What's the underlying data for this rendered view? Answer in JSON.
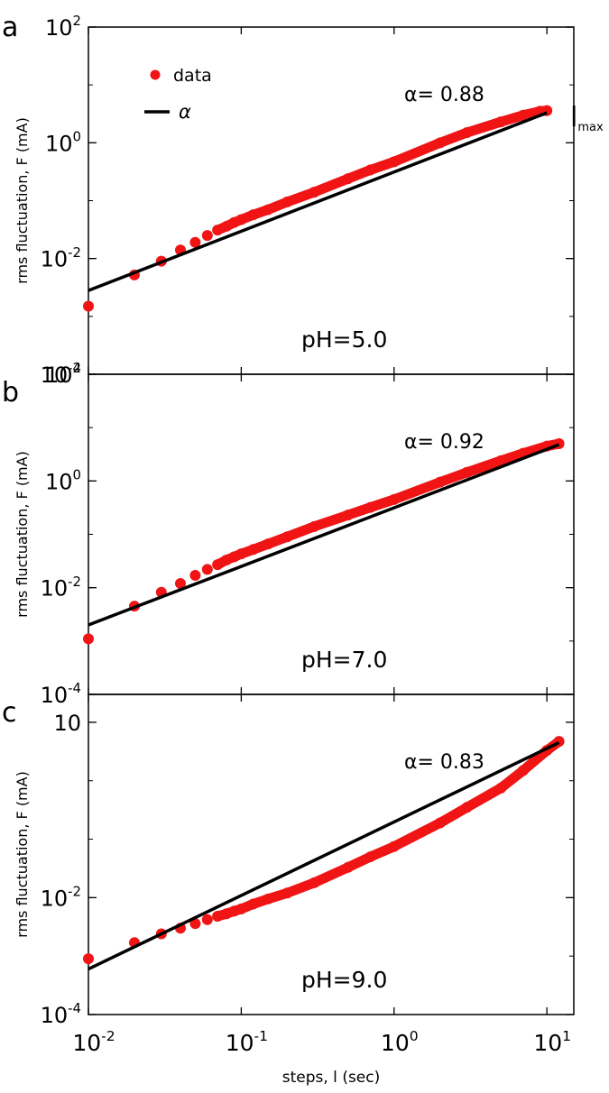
{
  "chart_data": [
    {
      "panel_label": "a",
      "type": "scatter",
      "xscale": "log",
      "yscale": "log",
      "xlim": [
        0.01,
        15
      ],
      "ylim": [
        0.0001,
        100
      ],
      "yticks": [
        0.0001,
        0.01,
        1,
        100
      ],
      "ytick_labels": [
        {
          "base": "10",
          "exp": "-4"
        },
        {
          "base": "10",
          "exp": "-2"
        },
        {
          "base": "10",
          "exp": "0"
        },
        {
          "base": "10",
          "exp": "2"
        }
      ],
      "ylabel": "rms fluctuation,  F (mA)",
      "annotation": "pH=5.0",
      "alpha_label": "α= 0.88",
      "alpha": 0.88,
      "lmax_label": {
        "main": "l",
        "sub": "max"
      },
      "lmax_x": 10,
      "legend": {
        "placement": "top-left",
        "entries": [
          {
            "marker": "dot",
            "label": "data"
          },
          {
            "marker": "line",
            "label": "α"
          }
        ]
      },
      "series": [
        {
          "kind": "points",
          "x": [
            0.01,
            0.02,
            0.03,
            0.04,
            0.05,
            0.06,
            0.07,
            0.08,
            0.09,
            0.1,
            0.12,
            0.15,
            0.2,
            0.3,
            0.5,
            0.7,
            1,
            2,
            3,
            5,
            7,
            9,
            10
          ],
          "y": [
            0.0015,
            0.0052,
            0.009,
            0.014,
            0.019,
            0.025,
            0.031,
            0.036,
            0.042,
            0.047,
            0.057,
            0.07,
            0.095,
            0.14,
            0.24,
            0.34,
            0.47,
            1.0,
            1.5,
            2.3,
            3.0,
            3.5,
            3.6
          ]
        },
        {
          "kind": "fit",
          "x": [
            0.01,
            10
          ],
          "y": [
            0.0028,
            3.3
          ]
        }
      ]
    },
    {
      "panel_label": "b",
      "type": "scatter",
      "xscale": "log",
      "yscale": "log",
      "xlim": [
        0.01,
        15
      ],
      "ylim": [
        0.0001,
        100
      ],
      "yticks": [
        0.0001,
        0.01,
        1,
        100
      ],
      "ytick_labels": [
        {
          "base": "10",
          "exp": "-4"
        },
        {
          "base": "10",
          "exp": "-2"
        },
        {
          "base": "10",
          "exp": "0"
        },
        {
          "base": "10",
          "exp": "2"
        }
      ],
      "ylabel": "rms fluctuation,  F (mA)",
      "annotation": "pH=7.0",
      "alpha_label": "α= 0.92",
      "alpha": 0.92,
      "series": [
        {
          "kind": "points",
          "x": [
            0.01,
            0.02,
            0.03,
            0.04,
            0.05,
            0.06,
            0.07,
            0.08,
            0.09,
            0.1,
            0.12,
            0.15,
            0.2,
            0.3,
            0.5,
            0.7,
            1,
            2,
            3,
            5,
            7,
            10,
            12
          ],
          "y": [
            0.0011,
            0.0045,
            0.0082,
            0.012,
            0.017,
            0.022,
            0.027,
            0.033,
            0.038,
            0.043,
            0.052,
            0.066,
            0.09,
            0.14,
            0.23,
            0.32,
            0.45,
            0.95,
            1.45,
            2.4,
            3.3,
            4.5,
            5.0
          ]
        },
        {
          "kind": "fit",
          "x": [
            0.01,
            12
          ],
          "y": [
            0.002,
            4.8
          ]
        }
      ]
    },
    {
      "panel_label": "c",
      "type": "scatter",
      "xscale": "log",
      "yscale": "log",
      "xlim": [
        0.01,
        15
      ],
      "ylim": [
        0.0001,
        30
      ],
      "yticks": [
        0.0001,
        0.01,
        10
      ],
      "ytick_labels": [
        {
          "base": "10",
          "exp": "-4"
        },
        {
          "base": "10",
          "exp": "-2"
        },
        {
          "base": "10",
          "exp": ""
        }
      ],
      "ylabel": "rms fluctuation,  F (mA)",
      "xlabel": "steps,  l (sec)",
      "xticks": [
        0.01,
        0.1,
        1,
        10
      ],
      "xtick_labels": [
        {
          "base": "10",
          "exp": "-2"
        },
        {
          "base": "10",
          "exp": "-1"
        },
        {
          "base": "10",
          "exp": "0"
        },
        {
          "base": "10",
          "exp": "1"
        }
      ],
      "annotation": "pH=9.0",
      "alpha_label": "α= 0.83",
      "alpha": 0.83,
      "series": [
        {
          "kind": "points",
          "x": [
            0.01,
            0.02,
            0.03,
            0.04,
            0.05,
            0.06,
            0.07,
            0.08,
            0.09,
            0.1,
            0.12,
            0.15,
            0.2,
            0.3,
            0.5,
            0.7,
            1,
            2,
            3,
            5,
            7,
            10,
            12
          ],
          "y": [
            0.0009,
            0.0017,
            0.0024,
            0.003,
            0.0036,
            0.0042,
            0.0048,
            0.0053,
            0.0059,
            0.0064,
            0.0078,
            0.0095,
            0.012,
            0.018,
            0.033,
            0.05,
            0.075,
            0.19,
            0.35,
            0.75,
            1.5,
            3.3,
            4.7
          ]
        },
        {
          "kind": "fit",
          "x": [
            0.01,
            12
          ],
          "y": [
            0.0006,
            4.5
          ]
        }
      ]
    }
  ]
}
